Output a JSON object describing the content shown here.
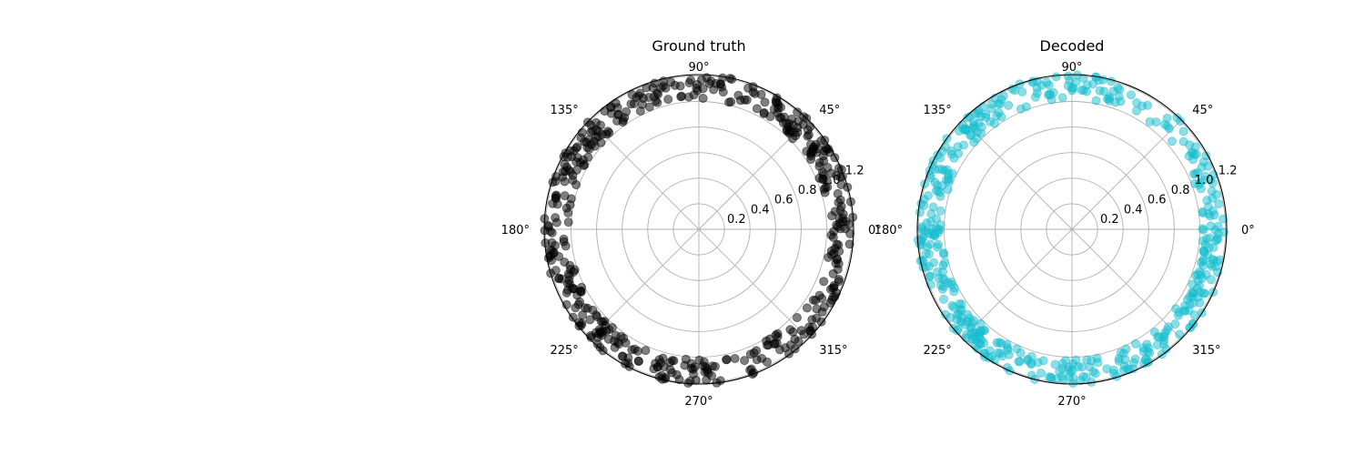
{
  "figure": {
    "background": "#ffffff",
    "grid_color": "#b0b0b0"
  },
  "chart_data": [
    {
      "type": "scatter",
      "projection": "polar",
      "title": "Ground truth",
      "marker_color": "#000000",
      "marker_alpha": 0.5,
      "angle_ticks": [
        "0°",
        "45°",
        "90°",
        "135°",
        "180°",
        "225°",
        "270°",
        "315°"
      ],
      "angle_tick_values_deg": [
        0,
        45,
        90,
        135,
        180,
        225,
        270,
        315
      ],
      "radial_ticks": [
        "0.2",
        "0.4",
        "0.6",
        "0.8",
        "1.0",
        "1.2"
      ],
      "radial_tick_values": [
        0.2,
        0.4,
        0.6,
        0.8,
        1.0,
        1.2
      ],
      "rlim": [
        0,
        1.21
      ],
      "grid": true,
      "seed": 11,
      "n_points": 480,
      "radius_range": [
        1.02,
        1.21
      ],
      "angle_distribution": "uniform"
    },
    {
      "type": "scatter",
      "projection": "polar",
      "title": "Decoded",
      "marker_color": "#17becf",
      "marker_alpha": 0.5,
      "angle_ticks": [
        "0°",
        "45°",
        "90°",
        "135°",
        "180°",
        "225°",
        "270°",
        "315°"
      ],
      "angle_tick_values_deg": [
        0,
        45,
        90,
        135,
        180,
        225,
        270,
        315
      ],
      "radial_ticks": [
        "0.2",
        "0.4",
        "0.6",
        "0.8",
        "1.0",
        "1.2"
      ],
      "radial_tick_values": [
        0.2,
        0.4,
        0.6,
        0.8,
        1.0,
        1.2
      ],
      "rlim": [
        0,
        1.21
      ],
      "grid": true,
      "seed": 29,
      "n_points": 480,
      "radius_range": [
        1.02,
        1.21
      ],
      "angle_distribution": "clustered",
      "angle_clusters_deg": [
        {
          "center": 90,
          "spread": 22,
          "weight": 1.2
        },
        {
          "center": 135,
          "spread": 12,
          "weight": 0.8
        },
        {
          "center": 20,
          "spread": 16,
          "weight": 1.0
        },
        {
          "center": 190,
          "spread": 14,
          "weight": 0.9
        },
        {
          "center": 230,
          "spread": 14,
          "weight": 1.3
        },
        {
          "center": 268,
          "spread": 14,
          "weight": 0.9
        },
        {
          "center": 315,
          "spread": 16,
          "weight": 1.4
        },
        {
          "center": 345,
          "spread": 8,
          "weight": 0.5
        },
        {
          "center": 160,
          "spread": 6,
          "weight": 0.3
        }
      ]
    }
  ]
}
